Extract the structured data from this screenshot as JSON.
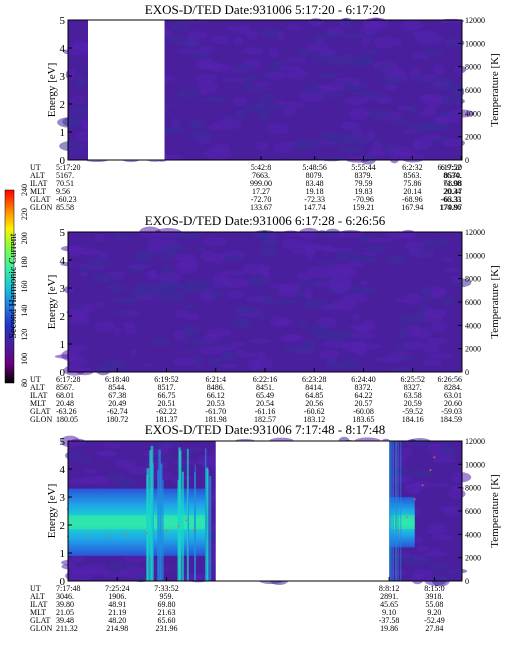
{
  "colors": {
    "background": "#4a1f9e",
    "spectra_cyan": "#17d9c9",
    "spectra_blue": "#1e8fe0",
    "spectra_green": "#58ff7a",
    "temp_curve": "#e06f1c"
  },
  "colorbar": {
    "label": "Second Harmonic Current",
    "ticks": [
      "80",
      "100",
      "120",
      "140",
      "160",
      "180",
      "200",
      "220",
      "240"
    ],
    "range": [
      80,
      240
    ],
    "colors": [
      "#000000",
      "#6a0080",
      "#4a1f9e",
      "#2233cc",
      "#1f7fe6",
      "#18c8d8",
      "#3cf0a0",
      "#80ff40",
      "#fff000",
      "#ff8000",
      "#ff0000"
    ]
  },
  "chart_data": [
    {
      "type": "heatmap",
      "title": "EXOS-D/TED    Date:931006   5:17:20 - 6:17:20",
      "ylabel": "Energy [eV]",
      "y2label": "Temperature [K]",
      "ylim": [
        0,
        5
      ],
      "yticks": [
        "0",
        "1",
        "2",
        "3",
        "4",
        "5"
      ],
      "y2lim": [
        0,
        12000
      ],
      "y2ticks": [
        "0",
        "2000",
        "4000",
        "6000",
        "8000",
        "10000",
        "12000"
      ],
      "data_gaps": [
        [
          0.0,
          0.245
        ]
      ],
      "spectra": [],
      "temperature_points": [],
      "orbit": {
        "labels": [
          "UT",
          "ALT",
          "ILAT",
          "MLT",
          "GLAT",
          "GLON"
        ],
        "columns": [
          {
            "x": 0.0,
            "values": [
              "5:17:20",
              "5167.",
              "70.51",
              "9.56",
              "-60.23",
              "85.58"
            ]
          },
          {
            "x": 0.49,
            "values": [
              "5:42:8",
              "7663.",
              "999.00",
              "17.27",
              "-72.70",
              "133.67"
            ]
          },
          {
            "x": 0.626,
            "values": [
              "5:48:56",
              "8079.",
              "83.48",
              "19.18",
              "-72.33",
              "147.74"
            ]
          },
          {
            "x": 0.75,
            "values": [
              "5:55:44",
              "8379.",
              "79.59",
              "19.83",
              "-70.96",
              "159.21"
            ]
          },
          {
            "x": 0.874,
            "values": [
              "6:2:32",
              "8563.",
              "75.86",
              "20.14",
              "-68.96",
              "167.94"
            ]
          },
          {
            "x": 0.998,
            "values": [
              "6:9:52",
              "8634.",
              "71.98",
              "20.34",
              "-66.33",
              "174.86"
            ]
          },
          {
            "x": 1.0,
            "values": [
              "6:17:20",
              "8570.",
              "68.08",
              "20.47",
              "-63.31",
              "179.97"
            ]
          }
        ]
      }
    },
    {
      "type": "heatmap",
      "title": "EXOS-D/TED    Date:931006   6:17:28 - 6:26:56",
      "ylabel": "Energy [eV]",
      "y2label": "Temperature [K]",
      "ylim": [
        0,
        5
      ],
      "yticks": [
        "0",
        "1",
        "2",
        "3",
        "4",
        "5"
      ],
      "y2lim": [
        0,
        12000
      ],
      "y2ticks": [
        "0",
        "2000",
        "4000",
        "6000",
        "8000",
        "10000",
        "12000"
      ],
      "data_gaps": [],
      "spectra": [],
      "temperature_points": [],
      "orbit": {
        "labels": [
          "UT",
          "ALT",
          "ILAT",
          "MLT",
          "GLAT",
          "GLON"
        ],
        "columns": [
          {
            "x": 0.0,
            "values": [
              "6:17:28",
              "8567.",
              "68.01",
              "20.48",
              "-63.26",
              "180.05"
            ]
          },
          {
            "x": 0.125,
            "values": [
              "6:18:40",
              "8544.",
              "67.38",
              "20.49",
              "-62.74",
              "180.72"
            ]
          },
          {
            "x": 0.25,
            "values": [
              "6:19:52",
              "8517.",
              "66.75",
              "20.51",
              "-62.22",
              "181.37"
            ]
          },
          {
            "x": 0.375,
            "values": [
              "6:21:4",
              "8486.",
              "66.12",
              "20.53",
              "-61.70",
              "181.98"
            ]
          },
          {
            "x": 0.5,
            "values": [
              "6:22:16",
              "8451.",
              "65.49",
              "20.54",
              "-61.16",
              "182.57"
            ]
          },
          {
            "x": 0.625,
            "values": [
              "6:23:28",
              "8414.",
              "64.85",
              "20.56",
              "-60.62",
              "183.12"
            ]
          },
          {
            "x": 0.75,
            "values": [
              "6:24:40",
              "8372.",
              "64.22",
              "20.57",
              "-60.08",
              "183.65"
            ]
          },
          {
            "x": 0.875,
            "values": [
              "6:25:52",
              "8327.",
              "63.58",
              "20.59",
              "-59.52",
              "184.16"
            ]
          },
          {
            "x": 1.0,
            "values": [
              "6:26:56",
              "8284.",
              "63.01",
              "20.60",
              "-59.03",
              "184.59"
            ]
          }
        ]
      }
    },
    {
      "type": "heatmap",
      "title": "EXOS-D/TED    Date:931006   7:17:48 - 8:17:48",
      "ylabel": "Energy [eV]",
      "y2label": "Temperature [K]",
      "ylim": [
        0,
        5
      ],
      "yticks": [
        "0",
        "1",
        "2",
        "3",
        "4",
        "5"
      ],
      "y2lim": [
        0,
        12000
      ],
      "y2ticks": [
        "0",
        "2000",
        "4000",
        "6000",
        "8000",
        "10000",
        "12000"
      ],
      "data_gaps": [
        [
          0.375,
          0.815
        ]
      ],
      "spectra": [
        {
          "x0": 0.0,
          "x1": 0.35,
          "center": 2.1,
          "width": 1.2
        },
        {
          "x0": 0.815,
          "x1": 0.88,
          "center": 2.1,
          "width": 0.9
        }
      ],
      "temperature_points": [
        {
          "t": 0.0,
          "y": 3800
        },
        {
          "t": 0.05,
          "y": 3900
        },
        {
          "t": 0.1,
          "y": 3900
        },
        {
          "t": 0.15,
          "y": 4000
        },
        {
          "t": 0.2,
          "y": 4100
        },
        {
          "t": 0.25,
          "y": 4300
        },
        {
          "t": 0.28,
          "y": 4700
        },
        {
          "t": 0.3,
          "y": 5200
        },
        {
          "t": 0.32,
          "y": 4400
        },
        {
          "t": 0.84,
          "y": 4200
        },
        {
          "t": 0.86,
          "y": 5500
        },
        {
          "t": 0.88,
          "y": 7000
        },
        {
          "t": 0.9,
          "y": 8200
        },
        {
          "t": 0.92,
          "y": 9500
        },
        {
          "t": 0.93,
          "y": 10600
        }
      ],
      "orbit": {
        "labels": [
          "UT",
          "ALT",
          "ILAT",
          "MLT",
          "GLAT",
          "GLON"
        ],
        "columns": [
          {
            "x": 0.0,
            "values": [
              "7:17:48",
              "3046.",
              "39.80",
              "21.05",
              "39.48",
              "211.32"
            ]
          },
          {
            "x": 0.125,
            "values": [
              "7:25:24",
              "1906.",
              "48.91",
              "21.19",
              "48.20",
              "214.98"
            ]
          },
          {
            "x": 0.25,
            "values": [
              "7:33:52",
              "959.",
              "69.80",
              "21.63",
              "65.60",
              "231.96"
            ]
          },
          {
            "x": 0.815,
            "values": [
              "8:8:12",
              "2891.",
              "45.65",
              "9.10",
              "-37.58",
              "19.86"
            ]
          },
          {
            "x": 0.93,
            "values": [
              "8:15:0",
              "3918.",
              "55.08",
              "9.20",
              "-52.49",
              "27.84"
            ]
          }
        ]
      }
    }
  ]
}
